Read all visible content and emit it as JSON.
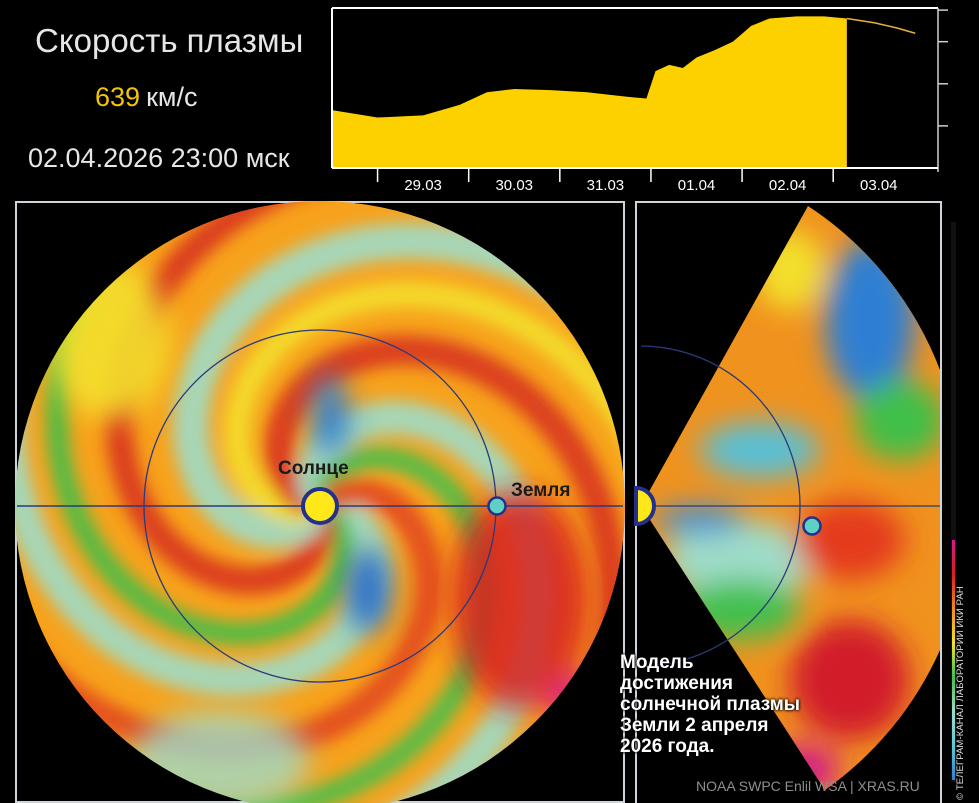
{
  "header": {
    "title": "Скорость плазмы",
    "speed_value": "639",
    "speed_unit": "км/с",
    "datetime": "02.04.2026 23:00 мск"
  },
  "chart_data": [
    {
      "type": "area",
      "title": "",
      "xlabel": "",
      "ylabel": "",
      "x_tick_labels": [
        "29.03",
        "30.03",
        "31.03",
        "01.04",
        "02.04",
        "03.04"
      ],
      "y_tick_labels": [],
      "grid": false,
      "x": [
        28.0,
        28.5,
        29.0,
        29.4,
        29.7,
        30.0,
        30.4,
        30.8,
        31.2,
        31.45,
        31.55,
        31.7,
        31.85,
        32.0,
        32.2,
        32.4,
        32.6,
        32.8,
        33.1,
        33.4,
        33.65,
        33.95,
        34.2,
        34.4
      ],
      "series": [
        {
          "values": [
            0.55,
            0.48,
            0.5,
            0.6,
            0.72,
            0.75,
            0.74,
            0.72,
            0.68,
            0.66,
            0.92,
            0.98,
            0.95,
            1.05,
            1.12,
            1.2,
            1.35,
            1.42,
            1.44,
            1.44,
            1.42,
            1.38,
            1.33,
            1.28
          ]
        }
      ],
      "forecast_from_x": 33.65,
      "fill_color": "#fdd000",
      "forecast_line_color": "#e8b23a"
    },
    {
      "type": "heatmap",
      "title": "",
      "panels": [
        {
          "projection": "ecliptic-plane",
          "labels": {
            "sun": "Солнце",
            "earth": "Земля"
          }
        },
        {
          "projection": "meridional-plane"
        }
      ],
      "colorscale": [
        "#2d7fd0",
        "#5ec9d4",
        "#9fdcc8",
        "#3fbf4a",
        "#f2e52a",
        "#f08a1c",
        "#d61f1f",
        "#d21e8a"
      ]
    }
  ],
  "caption": "Модель достижения солнечной плазмы Земли 2 апреля 2026 года.",
  "credit": "NOAA SWPC Enlil WSA | XRAS.RU",
  "copyright": "© ТЕЛЕГРАМ-КАНАЛ ЛАБОРАТОРИИ ИКИ РАН"
}
